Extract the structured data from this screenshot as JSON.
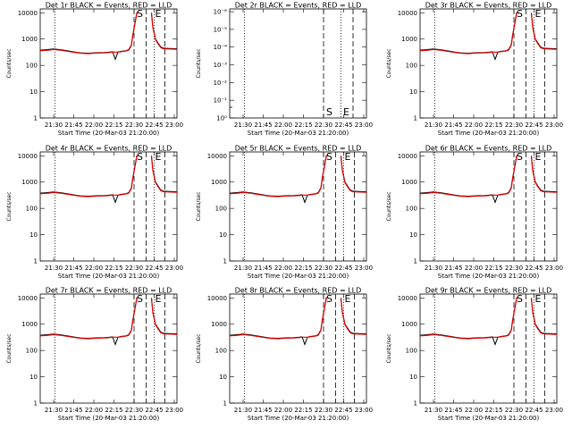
{
  "chart_data": {
    "type": "line",
    "layout": "3x3 grid of panels",
    "line_colors": {
      "events": "#000000",
      "lld": "#e00000"
    },
    "x_tick_labels": [
      "21:30",
      "21:45",
      "22:00",
      "22:15",
      "22:30",
      "22:45",
      "23:00"
    ],
    "x_tick_minutes": [
      90,
      105,
      120,
      135,
      150,
      165,
      180
    ],
    "x_range_minutes": [
      80,
      182
    ],
    "xlabel": "Start Time (20-Mar-03 21:20:00)",
    "ylabel": "Counts/sec",
    "time_series_minutes": [
      80,
      86,
      90,
      96,
      100,
      106,
      110,
      116,
      120,
      124,
      128,
      132,
      134,
      136,
      138,
      140,
      144,
      146,
      148,
      149,
      151,
      152,
      153,
      154,
      155,
      158,
      159,
      160,
      161,
      162,
      163,
      164,
      166,
      168,
      170,
      172,
      176,
      182
    ],
    "events_profile": [
      380,
      400,
      420,
      390,
      360,
      320,
      300,
      290,
      300,
      305,
      310,
      320,
      330,
      170,
      320,
      340,
      360,
      400,
      600,
      1400,
      5000,
      10000,
      10000,
      null,
      null,
      null,
      null,
      null,
      null,
      null,
      10000,
      3000,
      1000,
      700,
      500,
      450,
      440,
      430
    ],
    "lld_profile": [
      360,
      380,
      400,
      375,
      345,
      310,
      290,
      280,
      290,
      295,
      300,
      310,
      320,
      320,
      320,
      330,
      350,
      380,
      570,
      1300,
      4700,
      9500,
      10000,
      null,
      null,
      null,
      null,
      null,
      null,
      null,
      9500,
      2800,
      950,
      650,
      470,
      430,
      420,
      410
    ],
    "panels": [
      {
        "title": "Det 1r BLACK = Events, RED = LLD",
        "y_scale": "log",
        "y_ticks": [
          1,
          10,
          100,
          1000,
          10000
        ],
        "y_tick_labels": [
          "1",
          "10",
          "100",
          "1000",
          "10000"
        ],
        "ylim": [
          1,
          14000
        ],
        "has_data": true,
        "marker_S": "S",
        "marker_E": "E",
        "dotted_lines": [
          91,
          165
        ],
        "dashed_lines": [
          150,
          159,
          173
        ],
        "letters_near_top": true
      },
      {
        "title": "Det 2r BLACK = Events, RED = LLD",
        "y_scale": "log",
        "y_ticks": [
          1,
          0.1,
          0.01,
          0.001,
          0.0001,
          1e-05,
          1e-06
        ],
        "y_tick_labels": [
          "10⁰",
          "10⁻¹",
          "10⁻²",
          "10⁻³",
          "10⁻⁴",
          "10⁻⁵",
          "10⁻⁶"
        ],
        "ylim": [
          1,
          7e-07
        ],
        "has_data": false,
        "marker_S": "S",
        "marker_E": "E",
        "dotted_lines": [
          91,
          163
        ],
        "dashed_lines": [
          150,
          172
        ],
        "letters_near_top": false
      },
      {
        "title": "Det 3r BLACK = Events, RED = LLD",
        "y_scale": "log",
        "y_ticks": [
          1,
          10,
          100,
          1000,
          10000
        ],
        "y_tick_labels": [
          "1",
          "10",
          "100",
          "1000",
          "10000"
        ],
        "ylim": [
          1,
          14000
        ],
        "has_data": true,
        "marker_S": "S",
        "marker_E": "E",
        "dotted_lines": [
          91,
          165
        ],
        "dashed_lines": [
          150,
          159,
          173
        ],
        "letters_near_top": true
      },
      {
        "title": "Det 4r BLACK = Events, RED = LLD",
        "y_scale": "log",
        "y_ticks": [
          1,
          10,
          100,
          1000,
          10000
        ],
        "y_tick_labels": [
          "1",
          "10",
          "100",
          "1000",
          "10000"
        ],
        "ylim": [
          1,
          14000
        ],
        "has_data": true,
        "marker_S": "S",
        "marker_E": "E",
        "dotted_lines": [
          91,
          165
        ],
        "dashed_lines": [
          150,
          159,
          173
        ],
        "letters_near_top": true
      },
      {
        "title": "Det 5r BLACK = Events, RED = LLD",
        "y_scale": "log",
        "y_ticks": [
          1,
          10,
          100,
          1000,
          10000
        ],
        "y_tick_labels": [
          "1",
          "10",
          "100",
          "1000",
          "10000"
        ],
        "ylim": [
          1,
          14000
        ],
        "has_data": true,
        "marker_S": "S",
        "marker_E": "E",
        "dotted_lines": [
          91,
          165
        ],
        "dashed_lines": [
          150,
          159,
          173
        ],
        "letters_near_top": true
      },
      {
        "title": "Det 6r BLACK = Events, RED = LLD",
        "y_scale": "log",
        "y_ticks": [
          1,
          10,
          100,
          1000,
          10000
        ],
        "y_tick_labels": [
          "1",
          "10",
          "100",
          "1000",
          "10000"
        ],
        "ylim": [
          1,
          14000
        ],
        "has_data": true,
        "marker_S": "S",
        "marker_E": "E",
        "dotted_lines": [
          91,
          165
        ],
        "dashed_lines": [
          150,
          159,
          173
        ],
        "letters_near_top": true
      },
      {
        "title": "Det 7r BLACK = Events, RED = LLD",
        "y_scale": "log",
        "y_ticks": [
          1,
          10,
          100,
          1000,
          10000
        ],
        "y_tick_labels": [
          "1",
          "10",
          "100",
          "1000",
          "10000"
        ],
        "ylim": [
          1,
          14000
        ],
        "has_data": true,
        "marker_S": "S",
        "marker_E": "E",
        "dotted_lines": [
          91,
          165
        ],
        "dashed_lines": [
          150,
          159,
          173
        ],
        "letters_near_top": true
      },
      {
        "title": "Det 8r BLACK = Events, RED = LLD",
        "y_scale": "log",
        "y_ticks": [
          1,
          10,
          100,
          1000,
          10000
        ],
        "y_tick_labels": [
          "1",
          "10",
          "100",
          "1000",
          "10000"
        ],
        "ylim": [
          1,
          14000
        ],
        "has_data": true,
        "marker_S": "S",
        "marker_E": "E",
        "dotted_lines": [
          91,
          165
        ],
        "dashed_lines": [
          150,
          159,
          173
        ],
        "letters_near_top": true
      },
      {
        "title": "Det 9r BLACK = Events, RED = LLD",
        "y_scale": "log",
        "y_ticks": [
          1,
          10,
          100,
          1000,
          10000
        ],
        "y_tick_labels": [
          "1",
          "10",
          "100",
          "1000",
          "10000"
        ],
        "ylim": [
          1,
          14000
        ],
        "has_data": true,
        "marker_S": "S",
        "marker_E": "E",
        "dotted_lines": [
          91,
          165
        ],
        "dashed_lines": [
          150,
          159,
          173
        ],
        "letters_near_top": true
      }
    ]
  }
}
